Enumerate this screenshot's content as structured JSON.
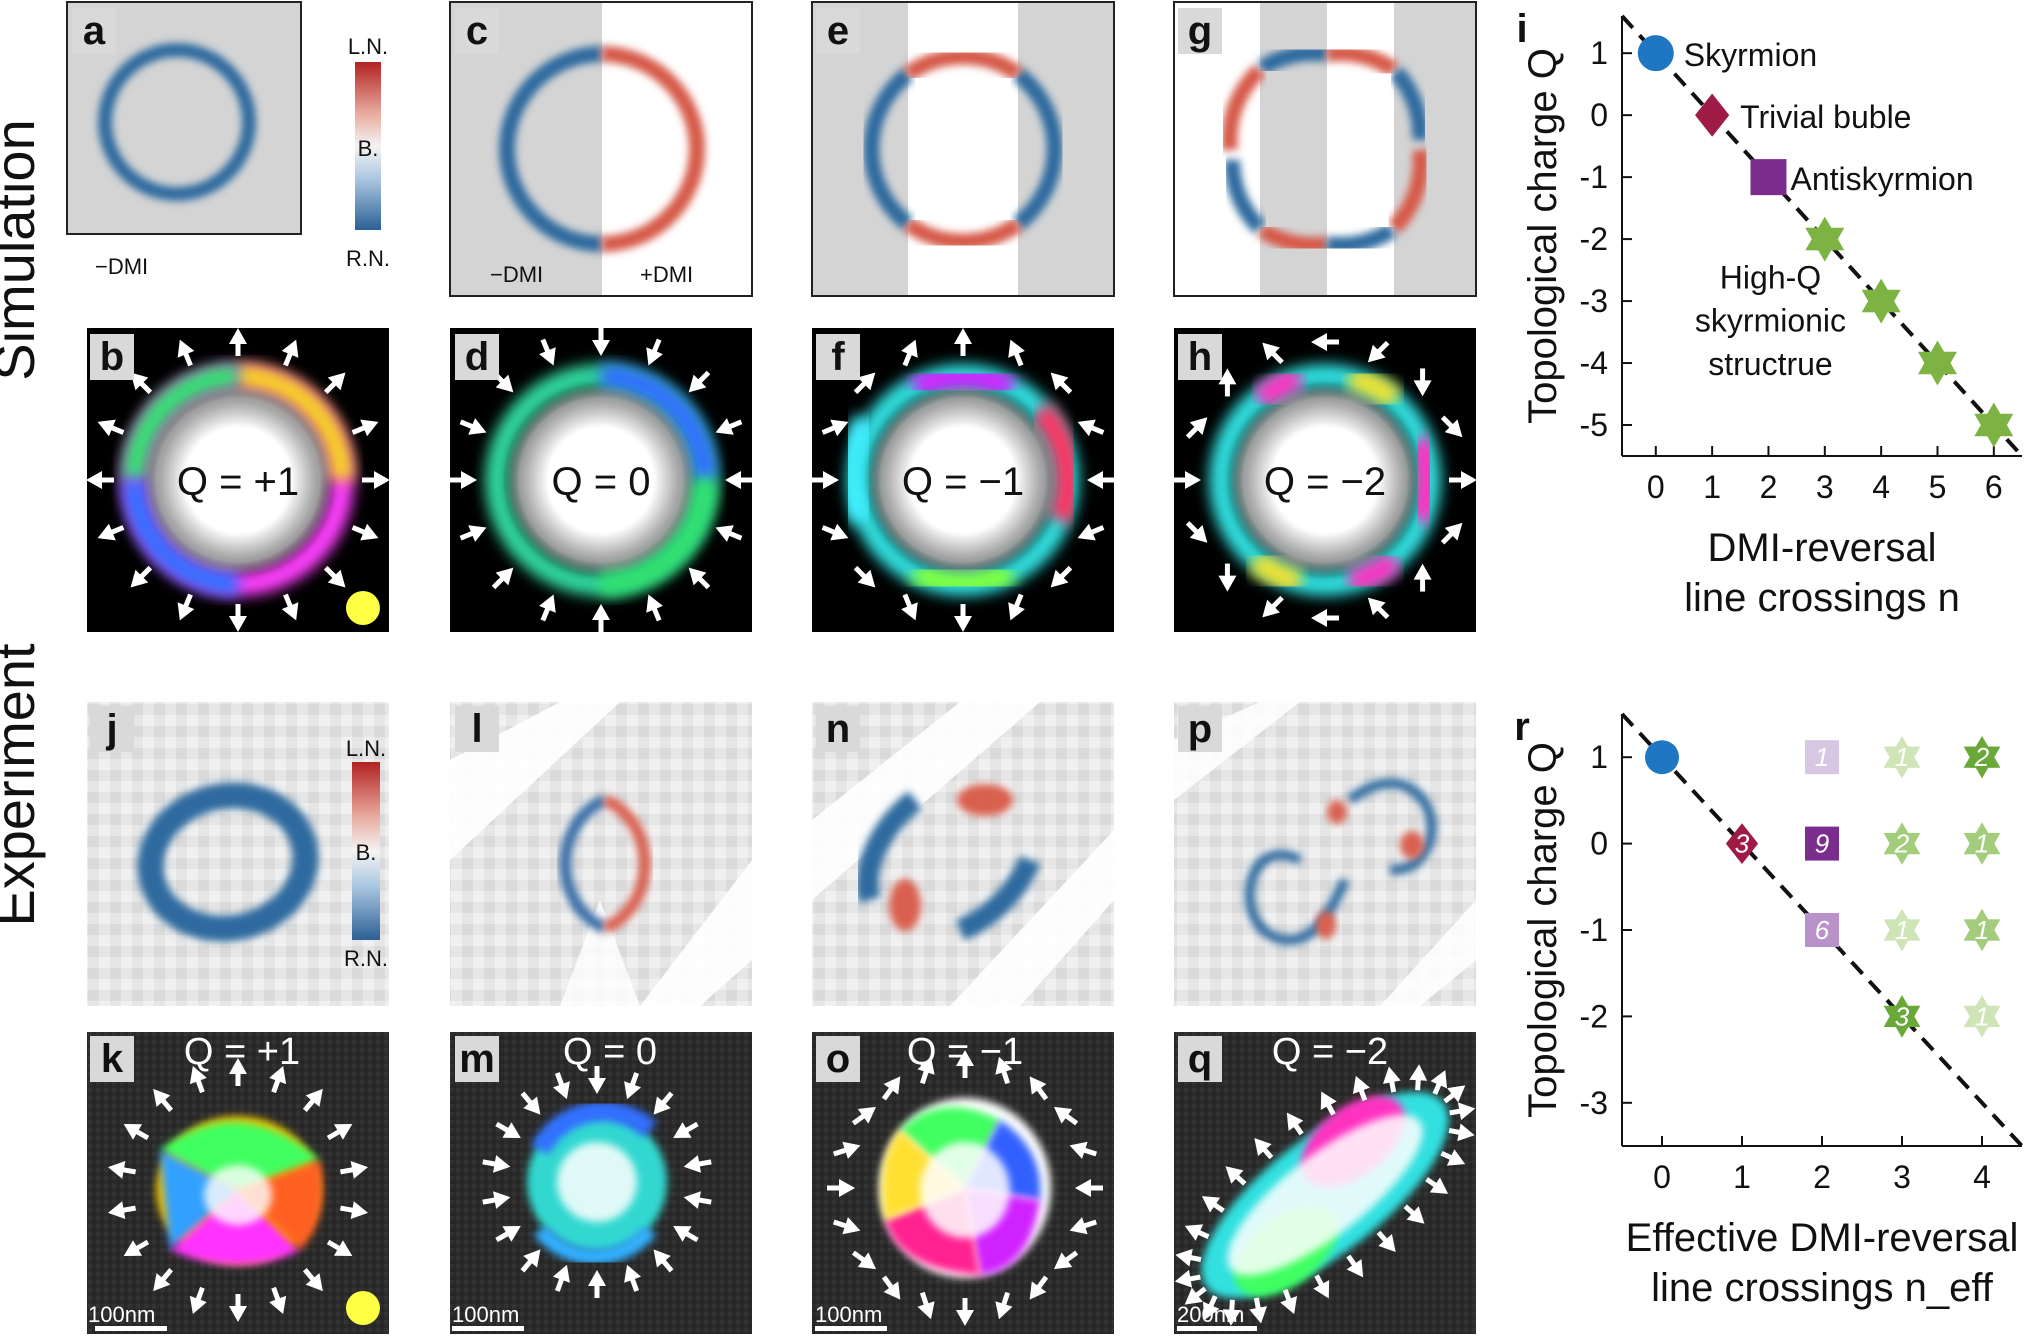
{
  "row_labels": {
    "simulation": "Simulation",
    "experiment": "Experiment"
  },
  "panel_letters": [
    "a",
    "b",
    "c",
    "d",
    "e",
    "f",
    "g",
    "h",
    "i",
    "j",
    "k",
    "l",
    "m",
    "n",
    "o",
    "p",
    "q",
    "r"
  ],
  "colorbar": {
    "top": "L.N.",
    "mid": "B.",
    "bottom": "R.N."
  },
  "dmi_labels": {
    "minus": "−DMI",
    "plus": "+DMI"
  },
  "q_sim": [
    "Q = +1",
    "Q = 0",
    "Q = −1",
    "Q = −2"
  ],
  "q_exp": [
    "Q = +1",
    "Q = 0",
    "Q = −1",
    "Q = −2"
  ],
  "scalebars": [
    "100nm",
    "100nm",
    "100nm",
    "200nm"
  ],
  "colors": {
    "skyrmion": "#1f77c4",
    "trivial": "#a01a46",
    "antiskyrmion": "#7b2d8e",
    "highq": "#7cb342",
    "ring_blue": "#2f6a9f",
    "ring_red": "#d65a4a",
    "panel_gray": "#d4d4d4"
  },
  "chart_data": [
    {
      "panel": "i",
      "type": "scatter",
      "xlabel": [
        "DMI-reversal",
        "line crossings n"
      ],
      "ylabel": "Topological charge Q",
      "xlim": [
        -0.6,
        6.5
      ],
      "ylim": [
        -5.5,
        1.6
      ],
      "xticks": [
        0,
        1,
        2,
        3,
        4,
        5,
        6
      ],
      "yticks": [
        1,
        0,
        -1,
        -2,
        -3,
        -4,
        -5
      ],
      "trend_line": {
        "style": "dashed",
        "x": [
          -0.6,
          6.5
        ],
        "y": [
          1.6,
          -5.5
        ]
      },
      "series": [
        {
          "name": "Skyrmion",
          "marker": "circle",
          "points": [
            [
              0,
              1
            ]
          ]
        },
        {
          "name": "Trivial buble",
          "marker": "diamond",
          "points": [
            [
              1,
              0
            ]
          ]
        },
        {
          "name": "Antiskyrmion",
          "marker": "square",
          "points": [
            [
              2,
              -1
            ]
          ]
        },
        {
          "name": "High-Q skyrmionic structrue",
          "marker": "star",
          "points": [
            [
              3,
              -2
            ],
            [
              4,
              -3
            ],
            [
              5,
              -4
            ],
            [
              6,
              -5
            ]
          ]
        }
      ],
      "annotations": [
        "Skyrmion",
        "Trivial buble",
        "Antiskyrmion",
        "High-Q",
        "skyrmionic",
        "structrue"
      ]
    },
    {
      "panel": "r",
      "type": "scatter",
      "xlabel": [
        "Effective DMI-reversal",
        "line crossings n_eff"
      ],
      "ylabel": "Topological charge Q",
      "xlim": [
        -0.5,
        4.5
      ],
      "ylim": [
        -3.5,
        1.5
      ],
      "xticks": [
        0,
        1,
        2,
        3,
        4
      ],
      "yticks": [
        1,
        0,
        -1,
        -2,
        -3
      ],
      "trend_line": {
        "style": "dashed",
        "x": [
          -0.5,
          4.5
        ],
        "y": [
          1.5,
          -3.5
        ]
      },
      "points": [
        {
          "x": 0,
          "y": 1,
          "marker": "circle",
          "count": ""
        },
        {
          "x": 1,
          "y": 0,
          "marker": "diamond",
          "count": "3"
        },
        {
          "x": 2,
          "y": 1,
          "marker": "square",
          "count": "1",
          "shade": "light"
        },
        {
          "x": 2,
          "y": 0,
          "marker": "square",
          "count": "9",
          "shade": "dark"
        },
        {
          "x": 2,
          "y": -1,
          "marker": "square",
          "count": "6",
          "shade": "mid"
        },
        {
          "x": 3,
          "y": 1,
          "marker": "star",
          "count": "1",
          "shade": "light"
        },
        {
          "x": 3,
          "y": 0,
          "marker": "star",
          "count": "2",
          "shade": "mid"
        },
        {
          "x": 3,
          "y": -1,
          "marker": "star",
          "count": "1",
          "shade": "light"
        },
        {
          "x": 3,
          "y": -2,
          "marker": "star",
          "count": "3",
          "shade": "dark"
        },
        {
          "x": 4,
          "y": 1,
          "marker": "star",
          "count": "2",
          "shade": "dark"
        },
        {
          "x": 4,
          "y": 0,
          "marker": "star",
          "count": "1",
          "shade": "mid"
        },
        {
          "x": 4,
          "y": -1,
          "marker": "star",
          "count": "1",
          "shade": "mid"
        },
        {
          "x": 4,
          "y": -2,
          "marker": "star",
          "count": "1",
          "shade": "light"
        }
      ]
    }
  ]
}
